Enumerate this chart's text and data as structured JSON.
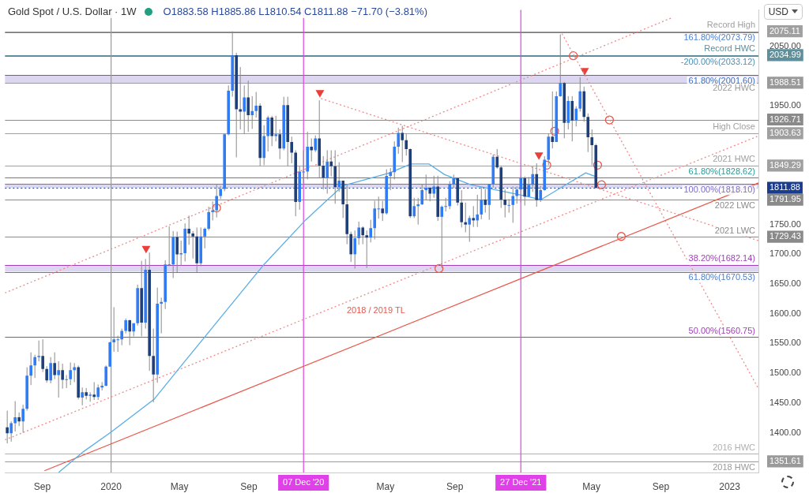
{
  "chart_data": {
    "type": "candlestick",
    "title": "Gold Spot / U.S. Dollar · 1W",
    "subtitle": "O1883.58 H1885.86 L1810.54 C1811.88 −71.70 (−3.81%)",
    "x": [
      "2019-07-01",
      "2019-07-08",
      "2019-07-15",
      "2019-07-22",
      "2019-07-29",
      "2019-08-05",
      "2019-08-12",
      "2019-08-19",
      "2019-08-26",
      "2019-09-02",
      "2019-09-09",
      "2019-09-16",
      "2019-09-23",
      "2019-09-30",
      "2019-10-07",
      "2019-10-14",
      "2019-10-21",
      "2019-10-28",
      "2019-11-04",
      "2019-11-11",
      "2019-11-18",
      "2019-11-25",
      "2019-12-02",
      "2019-12-09",
      "2019-12-16",
      "2019-12-23",
      "2019-12-30",
      "2020-01-06",
      "2020-01-13",
      "2020-01-20",
      "2020-01-27",
      "2020-02-03",
      "2020-02-10",
      "2020-02-17",
      "2020-02-24",
      "2020-03-02",
      "2020-03-09",
      "2020-03-16",
      "2020-03-23",
      "2020-03-30",
      "2020-04-06",
      "2020-04-13",
      "2020-04-20",
      "2020-04-27",
      "2020-05-04",
      "2020-05-11",
      "2020-05-18",
      "2020-05-25",
      "2020-06-01",
      "2020-06-08",
      "2020-06-15",
      "2020-06-22",
      "2020-06-29",
      "2020-07-06",
      "2020-07-13",
      "2020-07-20",
      "2020-07-27",
      "2020-08-03",
      "2020-08-10",
      "2020-08-17",
      "2020-08-24",
      "2020-08-31",
      "2020-09-07",
      "2020-09-14",
      "2020-09-21",
      "2020-09-28",
      "2020-10-05",
      "2020-10-12",
      "2020-10-19",
      "2020-10-26",
      "2020-11-02",
      "2020-11-09",
      "2020-11-16",
      "2020-11-23",
      "2020-11-30",
      "2020-12-07",
      "2020-12-14",
      "2020-12-21",
      "2020-12-28",
      "2021-01-04",
      "2021-01-11",
      "2021-01-18",
      "2021-01-25",
      "2021-02-01",
      "2021-02-08",
      "2021-02-15",
      "2021-02-22",
      "2021-03-01",
      "2021-03-08",
      "2021-03-15",
      "2021-03-22",
      "2021-03-29",
      "2021-04-05",
      "2021-04-12",
      "2021-04-19",
      "2021-04-26",
      "2021-05-03",
      "2021-05-10",
      "2021-05-17",
      "2021-05-24",
      "2021-05-31",
      "2021-06-07",
      "2021-06-14",
      "2021-06-21",
      "2021-06-28",
      "2021-07-05",
      "2021-07-12",
      "2021-07-19",
      "2021-07-26",
      "2021-08-02",
      "2021-08-09",
      "2021-08-16",
      "2021-08-23",
      "2021-08-30",
      "2021-09-06",
      "2021-09-13",
      "2021-09-20",
      "2021-09-27",
      "2021-10-04",
      "2021-10-11",
      "2021-10-18",
      "2021-10-25",
      "2021-11-01",
      "2021-11-08",
      "2021-11-15",
      "2021-11-22",
      "2021-11-29",
      "2021-12-06",
      "2021-12-13",
      "2021-12-20",
      "2021-12-27",
      "2022-01-03",
      "2022-01-10",
      "2022-01-17",
      "2022-01-24",
      "2022-01-31",
      "2022-02-07",
      "2022-02-14",
      "2022-02-21",
      "2022-02-28",
      "2022-03-07",
      "2022-03-14",
      "2022-03-21",
      "2022-03-28",
      "2022-04-04",
      "2022-04-11",
      "2022-04-18",
      "2022-04-25",
      "2022-05-02",
      "2022-05-09"
    ],
    "ohlc": [
      [
        1409,
        1437,
        1382,
        1399
      ],
      [
        1399,
        1419,
        1385,
        1416
      ],
      [
        1416,
        1453,
        1402,
        1426
      ],
      [
        1426,
        1434,
        1411,
        1419
      ],
      [
        1419,
        1447,
        1400,
        1440
      ],
      [
        1440,
        1510,
        1437,
        1496
      ],
      [
        1496,
        1535,
        1480,
        1513
      ],
      [
        1513,
        1531,
        1492,
        1527
      ],
      [
        1527,
        1555,
        1520,
        1529
      ],
      [
        1529,
        1557,
        1502,
        1507
      ],
      [
        1507,
        1512,
        1484,
        1488
      ],
      [
        1488,
        1527,
        1483,
        1517
      ],
      [
        1517,
        1535,
        1490,
        1497
      ],
      [
        1497,
        1520,
        1459,
        1505
      ],
      [
        1505,
        1516,
        1474,
        1489
      ],
      [
        1489,
        1497,
        1475,
        1490
      ],
      [
        1490,
        1518,
        1480,
        1505
      ],
      [
        1505,
        1517,
        1485,
        1510
      ],
      [
        1510,
        1513,
        1456,
        1459
      ],
      [
        1459,
        1476,
        1446,
        1468
      ],
      [
        1468,
        1475,
        1456,
        1462
      ],
      [
        1462,
        1468,
        1452,
        1464
      ],
      [
        1464,
        1485,
        1455,
        1460
      ],
      [
        1460,
        1481,
        1455,
        1476
      ],
      [
        1476,
        1485,
        1471,
        1479
      ],
      [
        1479,
        1513,
        1478,
        1511
      ],
      [
        1511,
        1553,
        1511,
        1552
      ],
      [
        1552,
        1611,
        1536,
        1557
      ],
      [
        1557,
        1563,
        1536,
        1557
      ],
      [
        1557,
        1575,
        1547,
        1571
      ],
      [
        1571,
        1592,
        1567,
        1589
      ],
      [
        1589,
        1590,
        1547,
        1570
      ],
      [
        1570,
        1584,
        1562,
        1584
      ],
      [
        1584,
        1649,
        1580,
        1643
      ],
      [
        1643,
        1689,
        1562,
        1585
      ],
      [
        1585,
        1692,
        1575,
        1674
      ],
      [
        1674,
        1703,
        1504,
        1529
      ],
      [
        1529,
        1575,
        1451,
        1498
      ],
      [
        1498,
        1644,
        1484,
        1617
      ],
      [
        1617,
        1627,
        1567,
        1620
      ],
      [
        1620,
        1690,
        1608,
        1683
      ],
      [
        1683,
        1747,
        1680,
        1683
      ],
      [
        1683,
        1739,
        1660,
        1729
      ],
      [
        1729,
        1738,
        1670,
        1700
      ],
      [
        1700,
        1723,
        1681,
        1702
      ],
      [
        1702,
        1752,
        1688,
        1743
      ],
      [
        1743,
        1765,
        1716,
        1735
      ],
      [
        1735,
        1739,
        1693,
        1730
      ],
      [
        1730,
        1745,
        1670,
        1685
      ],
      [
        1685,
        1745,
        1680,
        1730
      ],
      [
        1730,
        1745,
        1710,
        1743
      ],
      [
        1743,
        1780,
        1740,
        1771
      ],
      [
        1771,
        1789,
        1757,
        1774
      ],
      [
        1774,
        1818,
        1762,
        1798
      ],
      [
        1798,
        1815,
        1793,
        1810
      ],
      [
        1810,
        1903,
        1806,
        1902
      ],
      [
        1902,
        1984,
        1900,
        1975
      ],
      [
        1975,
        2075.11,
        1965,
        2035
      ],
      [
        2035,
        2039,
        1863,
        1944
      ],
      [
        1944,
        2015,
        1910,
        1940
      ],
      [
        1940,
        1984,
        1902,
        1964
      ],
      [
        1964,
        1992,
        1906,
        1934
      ],
      [
        1934,
        1966,
        1911,
        1941
      ],
      [
        1941,
        1973,
        1930,
        1950
      ],
      [
        1950,
        1954,
        1848,
        1862
      ],
      [
        1862,
        1917,
        1850,
        1899
      ],
      [
        1899,
        1933,
        1873,
        1930
      ],
      [
        1930,
        1933,
        1882,
        1899
      ],
      [
        1899,
        1933,
        1890,
        1902
      ],
      [
        1902,
        1910,
        1860,
        1878
      ],
      [
        1878,
        1965,
        1875,
        1951
      ],
      [
        1951,
        1965,
        1848,
        1889
      ],
      [
        1889,
        1898,
        1853,
        1871
      ],
      [
        1871,
        1875,
        1764,
        1788
      ],
      [
        1788,
        1848,
        1775,
        1839
      ],
      [
        1839,
        1875,
        1820,
        1839
      ],
      [
        1839,
        1906,
        1826,
        1881
      ],
      [
        1881,
        1895,
        1856,
        1875
      ],
      [
        1875,
        1900,
        1872,
        1895
      ],
      [
        1895,
        1959,
        1828,
        1849
      ],
      [
        1849,
        1865,
        1809,
        1829
      ],
      [
        1829,
        1875,
        1802,
        1856
      ],
      [
        1856,
        1875,
        1831,
        1848
      ],
      [
        1848,
        1875,
        1785,
        1813
      ],
      [
        1813,
        1855,
        1805,
        1824
      ],
      [
        1824,
        1824,
        1761,
        1784
      ],
      [
        1784,
        1816,
        1717,
        1734
      ],
      [
        1734,
        1738,
        1687,
        1700
      ],
      [
        1700,
        1740,
        1676,
        1727
      ],
      [
        1727,
        1755,
        1716,
        1745
      ],
      [
        1745,
        1747,
        1717,
        1732
      ],
      [
        1732,
        1740,
        1677,
        1728
      ],
      [
        1728,
        1758,
        1720,
        1744
      ],
      [
        1744,
        1790,
        1725,
        1777
      ],
      [
        1777,
        1797,
        1760,
        1777
      ],
      [
        1777,
        1790,
        1756,
        1769
      ],
      [
        1769,
        1843,
        1767,
        1832
      ],
      [
        1832,
        1845,
        1808,
        1838
      ],
      [
        1838,
        1890,
        1826,
        1881
      ],
      [
        1881,
        1913,
        1869,
        1904
      ],
      [
        1904,
        1916,
        1855,
        1892
      ],
      [
        1892,
        1903,
        1866,
        1877
      ],
      [
        1877,
        1878,
        1761,
        1764
      ],
      [
        1764,
        1795,
        1761,
        1781
      ],
      [
        1781,
        1795,
        1750,
        1784
      ],
      [
        1784,
        1818,
        1783,
        1808
      ],
      [
        1808,
        1834,
        1791,
        1812
      ],
      [
        1812,
        1813,
        1789,
        1802
      ],
      [
        1802,
        1832,
        1795,
        1814
      ],
      [
        1814,
        1832,
        1756,
        1763
      ],
      [
        1763,
        1782,
        1677,
        1780
      ],
      [
        1780,
        1795,
        1772,
        1781
      ],
      [
        1781,
        1823,
        1776,
        1818
      ],
      [
        1818,
        1834,
        1811,
        1828
      ],
      [
        1828,
        1828,
        1782,
        1787
      ],
      [
        1787,
        1808,
        1745,
        1754
      ],
      [
        1754,
        1787,
        1737,
        1750
      ],
      [
        1750,
        1765,
        1721,
        1761
      ],
      [
        1761,
        1781,
        1746,
        1757
      ],
      [
        1757,
        1800,
        1746,
        1767
      ],
      [
        1767,
        1813,
        1759,
        1792
      ],
      [
        1792,
        1810,
        1770,
        1783
      ],
      [
        1783,
        1818,
        1758,
        1818
      ],
      [
        1818,
        1868,
        1812,
        1864
      ],
      [
        1864,
        1877,
        1844,
        1846
      ],
      [
        1846,
        1849,
        1778,
        1792
      ],
      [
        1792,
        1809,
        1762,
        1783
      ],
      [
        1783,
        1793,
        1770,
        1783
      ],
      [
        1783,
        1814,
        1753,
        1798
      ],
      [
        1798,
        1814,
        1785,
        1809
      ],
      [
        1809,
        1831,
        1787,
        1828
      ],
      [
        1828,
        1831,
        1782,
        1797
      ],
      [
        1797,
        1830,
        1796,
        1817
      ],
      [
        1817,
        1847,
        1805,
        1835
      ],
      [
        1835,
        1853,
        1780,
        1791
      ],
      [
        1791,
        1815,
        1788,
        1808
      ],
      [
        1808,
        1865,
        1807,
        1859
      ],
      [
        1859,
        1903,
        1850,
        1898
      ],
      [
        1898,
        1974,
        1878,
        1889
      ],
      [
        1889,
        1974,
        1889,
        1966
      ],
      [
        1966,
        2070,
        1965,
        1988
      ],
      [
        1988,
        1990,
        1895,
        1921
      ],
      [
        1921,
        1966,
        1910,
        1958
      ],
      [
        1958,
        1966,
        1890,
        1925
      ],
      [
        1925,
        1949,
        1915,
        1945
      ],
      [
        1945,
        1998,
        1940,
        1974
      ],
      [
        1974,
        1982,
        1923,
        1931
      ],
      [
        1931,
        1937,
        1872,
        1897
      ],
      [
        1897,
        1910,
        1850,
        1883.58
      ],
      [
        1883.58,
        1885.86,
        1810.54,
        1811.88
      ]
    ],
    "colors": [
      "#1e3f7a",
      "#2f7cf6",
      "#2f7cf6",
      "#1e3f7a",
      "#2f7cf6",
      "#2f7cf6",
      "#2f7cf6",
      "#2f7cf6",
      "#2f7cf6",
      "#1e3f7a",
      "#1e3f7a",
      "#2f7cf6",
      "#1e3f7a",
      "#2f7cf6",
      "#1e3f7a",
      "#2f7cf6",
      "#2f7cf6",
      "#2f7cf6",
      "#1e3f7a",
      "#2f7cf6",
      "#1e3f7a",
      "#2f7cf6",
      "#1e3f7a",
      "#2f7cf6",
      "#2f7cf6",
      "#2f7cf6",
      "#2f7cf6",
      "#2f7cf6",
      "#2f7cf6",
      "#2f7cf6",
      "#2f7cf6",
      "#1e3f7a",
      "#2f7cf6",
      "#2f7cf6",
      "#1e3f7a",
      "#2f7cf6",
      "#1e3f7a",
      "#1e3f7a",
      "#2f7cf6",
      "#2f7cf6",
      "#2f7cf6",
      "#2f7cf6",
      "#2f7cf6",
      "#1e3f7a",
      "#2f7cf6",
      "#2f7cf6",
      "#1e3f7a",
      "#1e3f7a",
      "#1e3f7a",
      "#2f7cf6",
      "#2f7cf6",
      "#2f7cf6",
      "#2f7cf6",
      "#2f7cf6",
      "#2f7cf6",
      "#2f7cf6",
      "#2f7cf6",
      "#2f7cf6",
      "#1e3f7a",
      "#1e3f7a",
      "#2f7cf6",
      "#1e3f7a",
      "#2f7cf6",
      "#2f7cf6",
      "#1e3f7a",
      "#2f7cf6",
      "#2f7cf6",
      "#1e3f7a",
      "#2f7cf6",
      "#1e3f7a",
      "#2f7cf6",
      "#1e3f7a",
      "#1e3f7a",
      "#1e3f7a",
      "#2f7cf6",
      "#2f7cf6",
      "#2f7cf6",
      "#1e3f7a",
      "#2f7cf6",
      "#1e3f7a",
      "#1e3f7a",
      "#2f7cf6",
      "#1e3f7a",
      "#1e3f7a",
      "#2f7cf6",
      "#1e3f7a",
      "#1e3f7a",
      "#1e3f7a",
      "#2f7cf6",
      "#2f7cf6",
      "#1e3f7a",
      "#1e3f7a",
      "#2f7cf6",
      "#2f7cf6",
      "#2f7cf6",
      "#1e3f7a",
      "#2f7cf6",
      "#2f7cf6",
      "#2f7cf6",
      "#2f7cf6",
      "#1e3f7a",
      "#1e3f7a",
      "#1e3f7a",
      "#2f7cf6",
      "#2f7cf6",
      "#2f7cf6",
      "#2f7cf6",
      "#1e3f7a",
      "#2f7cf6",
      "#1e3f7a",
      "#2f7cf6",
      "#2f7cf6",
      "#2f7cf6",
      "#2f7cf6",
      "#1e3f7a",
      "#1e3f7a",
      "#1e3f7a",
      "#2f7cf6",
      "#1e3f7a",
      "#2f7cf6",
      "#2f7cf6",
      "#1e3f7a",
      "#2f7cf6",
      "#2f7cf6",
      "#1e3f7a",
      "#1e3f7a",
      "#1e3f7a",
      "#2f7cf6",
      "#2f7cf6",
      "#2f7cf6",
      "#2f7cf6",
      "#1e3f7a",
      "#2f7cf6",
      "#2f7cf6",
      "#1e3f7a",
      "#2f7cf6",
      "#2f7cf6",
      "#2f7cf6",
      "#1e3f7a",
      "#2f7cf6",
      "#2f7cf6",
      "#1e3f7a",
      "#2f7cf6",
      "#1e3f7a",
      "#2f7cf6",
      "#2f7cf6",
      "#1e3f7a",
      "#1e3f7a",
      "#1e3f7a",
      "#1e3f7a"
    ],
    "series": [
      {
        "type": "line",
        "color": "#5aaee6",
        "line_style": "solid",
        "x": [
          "2019-09-30",
          "2019-11-13",
          "2020-01-01",
          "2020-03-17",
          "2020-05-08",
          "2020-09-28",
          "2020-12-11",
          "2021-02-14",
          "2021-05-09",
          "2021-06-15",
          "2021-07-17",
          "2021-08-14",
          "2021-09-29",
          "2021-11-24",
          "2021-12-31",
          "2022-02-01",
          "2022-03-20",
          "2022-04-21",
          "2022-05-10"
        ],
        "values": [
          1333,
          1368,
          1401,
          1456,
          1517,
          1683,
          1758,
          1815,
          1837,
          1852,
          1852,
          1834,
          1817,
          1806,
          1799,
          1792,
          1819,
          1837,
          1830
        ]
      },
      {
        "type": "line",
        "name": "2018 / 2019 TL",
        "color": "#e8584c",
        "line_style": "solid",
        "x": [
          "2019-09-05",
          "2023-02-21"
        ],
        "values": [
          1336,
          1820
        ]
      },
      {
        "type": "line",
        "color": "#f08a8a",
        "line_style": "dotted",
        "x": [
          "2019-06-27",
          "2022-09-21"
        ],
        "values": [
          1635,
          2098
        ]
      },
      {
        "type": "line",
        "color": "#f08a8a",
        "line_style": "dotted",
        "x": [
          "2019-06-27",
          "2023-02-21"
        ],
        "values": [
          1388,
          1899
        ]
      },
      {
        "type": "line",
        "color": "#f08a8a",
        "line_style": "dotted",
        "x": [
          "2021-01-07",
          "2023-02-21"
        ],
        "values": [
          1962,
          1723
        ]
      },
      {
        "type": "line",
        "color": "#f08a8a",
        "line_style": "dotted",
        "x": [
          "2022-03-10",
          "2023-02-21"
        ],
        "values": [
          2071,
          1474
        ]
      },
      {
        "type": "scatter",
        "color": "#e8584c",
        "marker": "circle",
        "x": [
          "2020-07-06",
          "2021-08-04",
          "2022-02-11",
          "2022-02-25",
          "2022-03-30",
          "2022-05-12",
          "2022-05-19",
          "2022-06-02",
          "2022-06-23"
        ],
        "values": [
          1778,
          1676,
          1850,
          1907,
          2034,
          1850,
          1817,
          1926,
          1730
        ]
      },
      {
        "type": "scatter",
        "color": "#e8403a",
        "marker": "triangle",
        "x": [
          "2020-03-03",
          "2021-01-05",
          "2022-01-28",
          "2022-04-19"
        ],
        "values": [
          1710,
          1972,
          1867,
          2009
        ]
      }
    ],
    "xlim": [
      "2019-06-27",
      "2023-02-21"
    ],
    "xticks": [
      {
        "value": "2019-09-01",
        "label": "Sep"
      },
      {
        "value": "2020-01-01",
        "label": "2020"
      },
      {
        "value": "2020-05-01",
        "label": "May"
      },
      {
        "value": "2020-09-01",
        "label": "Sep"
      },
      {
        "value": "2021-05-01",
        "label": "May"
      },
      {
        "value": "2021-09-01",
        "label": "Sep"
      },
      {
        "value": "2022-05-01",
        "label": "May"
      },
      {
        "value": "2022-09-01",
        "label": "Sep"
      },
      {
        "value": "2023-01-01",
        "label": "2023"
      }
    ],
    "ylim": [
      1333,
      2111
    ],
    "yticks": [
      {
        "value": 2050,
        "label": "2050.00"
      },
      {
        "value": 1950,
        "label": "1950.00"
      },
      {
        "value": 1750,
        "label": "1750.00"
      },
      {
        "value": 1700,
        "label": "1700.00"
      },
      {
        "value": 1650,
        "label": "1650.00"
      },
      {
        "value": 1600,
        "label": "1600.00"
      },
      {
        "value": 1550,
        "label": "1550.00"
      },
      {
        "value": 1500,
        "label": "1500.00"
      },
      {
        "value": 1450,
        "label": "1450.00"
      },
      {
        "value": 1400,
        "label": "1400.00"
      },
      2075.11,
      2034.99,
      1988.51,
      1926.71,
      1903.63,
      1849.29,
      1811.88,
      1791.95,
      1729.43,
      1351.61
    ],
    "ref_lines": [
      {
        "axis": "y",
        "value": 2075.11,
        "label": "Record High",
        "color": "#a0a0a0"
      },
      {
        "axis": "y",
        "value": 2073.79,
        "label": "161.80%(2073.79)",
        "color": "#4a7fd0"
      },
      {
        "axis": "y",
        "value": 2034.99,
        "label": "Record HWC",
        "color": "#5f8f9a"
      },
      {
        "axis": "y",
        "value": 2033.12,
        "label": "-200.00%(2033.12)",
        "color": "#4a90b8"
      },
      {
        "axis": "y",
        "value": 2001.6,
        "label": "61.80%(2001.60)",
        "color": "#3a6fc8"
      },
      {
        "axis": "y",
        "value": 1988.51,
        "label": "2022 HWC",
        "color": "#9a9a9a"
      },
      {
        "axis": "y",
        "value": 1926.71,
        "color": "#8a8a8a"
      },
      {
        "axis": "y",
        "value": 1903.63,
        "label": "High Close",
        "color": "#a0a0a0"
      },
      {
        "axis": "y",
        "value": 1849.29,
        "label": "2021 HWC",
        "color": "#a0a0a0"
      },
      {
        "axis": "y",
        "value": 1828.62,
        "label": "61.80%(1828.62)",
        "color": "#2a9a9a"
      },
      {
        "axis": "y",
        "value": 1818.1,
        "label": "100.00%(1818.10)",
        "color": "#7c6cc8"
      },
      {
        "axis": "y",
        "value": 1811.88,
        "color": "#1a3c8c",
        "line_style": "dotted"
      },
      {
        "axis": "y",
        "value": 1791.95,
        "label": "2022 LWC",
        "color": "#8a8a8a"
      },
      {
        "axis": "y",
        "value": 1729.43,
        "label": "2021 LWC",
        "color": "#8a8a8a"
      },
      {
        "axis": "y",
        "value": 1682.14,
        "label": "38.20%(1682.14)",
        "color": "#a040b8"
      },
      {
        "axis": "y",
        "value": 1670.53,
        "label": "61.80%(1670.53)",
        "color": "#4a7fd0"
      },
      {
        "axis": "y",
        "value": 1560.75,
        "label": "50.00%(1560.75)",
        "color": "#a040b8"
      },
      {
        "axis": "y",
        "value": 1364.4,
        "label": "2016 HWC",
        "color": "#b0b0b0"
      },
      {
        "axis": "y",
        "value": 1351.61,
        "label": "2018 HWC",
        "color": "#9a9a9a"
      },
      {
        "axis": "x",
        "value": "2020-01-01",
        "color": "#9a9a9a"
      },
      {
        "axis": "x",
        "value": "2020-12-07",
        "label": "07 Dec '20",
        "color": "#e040e8"
      },
      {
        "axis": "x",
        "value": "2021-12-27",
        "label": "27 Dec '21",
        "color": "#e040e8"
      }
    ],
    "bands": [
      {
        "axis": "y",
        "from": 1988.51,
        "to": 2001.6,
        "color": "#ddd6f0"
      },
      {
        "axis": "y",
        "from": 1811.88,
        "to": 1818.1,
        "color": "#ddd6f0"
      },
      {
        "axis": "y",
        "from": 1670.53,
        "to": 1682.14,
        "color": "#ddd6f0"
      }
    ],
    "annotations": [
      "USD"
    ]
  }
}
